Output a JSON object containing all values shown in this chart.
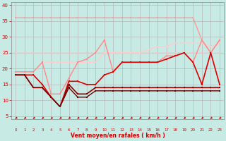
{
  "background_color": "#c8eae4",
  "grid_color": "#b0b0b0",
  "xlabel": "Vent moyen/en rafales ( km/h )",
  "xlabel_color": "#cc0000",
  "tick_color": "#cc0000",
  "yticks": [
    5,
    10,
    15,
    20,
    25,
    30,
    35,
    40
  ],
  "xticks": [
    0,
    1,
    2,
    3,
    4,
    5,
    6,
    7,
    8,
    9,
    10,
    11,
    12,
    13,
    14,
    15,
    16,
    17,
    18,
    19,
    20,
    21,
    22,
    23
  ],
  "ylim": [
    4,
    41
  ],
  "xlim": [
    -0.5,
    23.5
  ],
  "series": [
    {
      "x": [
        0,
        1,
        2,
        3,
        4,
        5,
        6,
        7,
        8,
        9,
        10,
        11,
        12,
        13,
        14,
        15,
        16,
        17,
        18,
        19,
        20,
        21,
        22,
        23
      ],
      "y": [
        36,
        36,
        36,
        36,
        36,
        36,
        36,
        36,
        36,
        36,
        36,
        36,
        36,
        36,
        36,
        36,
        36,
        36,
        36,
        36,
        36,
        29,
        25,
        29
      ],
      "color": "#ff9999",
      "linewidth": 1.0,
      "markersize": 1.8,
      "zorder": 2
    },
    {
      "x": [
        0,
        1,
        2,
        3,
        4,
        5,
        6,
        7,
        8,
        9,
        10,
        11,
        12,
        13,
        14,
        15,
        16,
        17,
        18,
        19,
        20,
        21,
        22,
        23
      ],
      "y": [
        25,
        25,
        25,
        25,
        25,
        25,
        25,
        25,
        25,
        25,
        25,
        25,
        25,
        25,
        25,
        25,
        25,
        25,
        25,
        25,
        25,
        25,
        25,
        25
      ],
      "color": "#ffbbbb",
      "linewidth": 1.0,
      "markersize": 1.8,
      "zorder": 2
    },
    {
      "x": [
        0,
        1,
        2,
        3,
        4,
        5,
        6,
        7,
        8,
        9,
        10,
        11,
        12,
        13,
        14,
        15,
        16,
        17,
        18,
        19,
        20,
        21,
        22,
        23
      ],
      "y": [
        19,
        19,
        19,
        22,
        22,
        22,
        22,
        22,
        22,
        22,
        25,
        25,
        25,
        25,
        25,
        26,
        27,
        27,
        28,
        28,
        28,
        28,
        27,
        28
      ],
      "color": "#ffcccc",
      "linewidth": 1.0,
      "markersize": 1.8,
      "zorder": 2
    },
    {
      "x": [
        0,
        1,
        2,
        3,
        4,
        5,
        6,
        7,
        8,
        9,
        10,
        11,
        12,
        13,
        14,
        15,
        16,
        17,
        18,
        19,
        20,
        21,
        22,
        23
      ],
      "y": [
        19,
        19,
        19,
        22,
        12,
        12,
        17,
        22,
        23,
        25,
        29,
        19,
        22,
        22,
        22,
        22,
        22,
        24,
        24,
        25,
        22,
        29,
        25,
        29
      ],
      "color": "#ff8888",
      "linewidth": 1.0,
      "markersize": 1.8,
      "zorder": 3
    },
    {
      "x": [
        0,
        1,
        2,
        3,
        4,
        5,
        6,
        7,
        8,
        9,
        10,
        11,
        12,
        13,
        14,
        15,
        16,
        17,
        18,
        19,
        20,
        21,
        22,
        23
      ],
      "y": [
        18,
        18,
        18,
        15,
        11,
        8,
        16,
        16,
        15,
        15,
        18,
        19,
        22,
        22,
        22,
        22,
        22,
        23,
        24,
        25,
        22,
        15,
        25,
        15
      ],
      "color": "#dd0000",
      "linewidth": 1.2,
      "markersize": 2.0,
      "zorder": 4
    },
    {
      "x": [
        0,
        1,
        2,
        3,
        4,
        5,
        6,
        7,
        8,
        9,
        10,
        11,
        12,
        13,
        14,
        15,
        16,
        17,
        18,
        19,
        20,
        21,
        22,
        23
      ],
      "y": [
        18,
        18,
        14,
        14,
        11,
        8,
        15,
        12,
        12,
        14,
        14,
        14,
        14,
        14,
        14,
        14,
        14,
        14,
        14,
        14,
        14,
        14,
        14,
        14
      ],
      "color": "#880000",
      "linewidth": 1.2,
      "markersize": 2.0,
      "zorder": 4
    },
    {
      "x": [
        0,
        1,
        2,
        3,
        4,
        5,
        6,
        7,
        8,
        9,
        10,
        11,
        12,
        13,
        14,
        15,
        16,
        17,
        18,
        19,
        20,
        21,
        22,
        23
      ],
      "y": [
        18,
        18,
        14,
        14,
        11,
        8,
        14,
        11,
        11,
        13,
        13,
        13,
        13,
        13,
        13,
        13,
        13,
        13,
        13,
        13,
        13,
        13,
        13,
        13
      ],
      "color": "#660000",
      "linewidth": 1.0,
      "markersize": 1.8,
      "zorder": 3
    }
  ],
  "arrow_color": "#cc0000"
}
